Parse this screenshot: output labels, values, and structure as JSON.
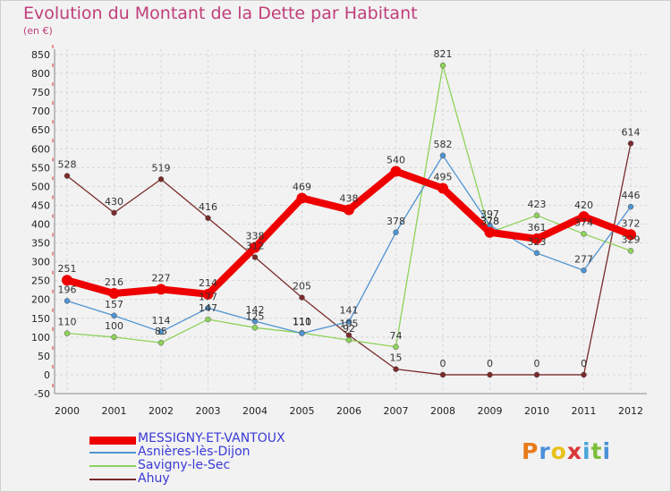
{
  "header": {
    "title": "Evolution du Montant de la Dette par Habitant",
    "subtitle": "(en €)"
  },
  "logo": {
    "letters": [
      "P",
      "r",
      "o",
      "x",
      "i",
      "t",
      "i"
    ],
    "colors": [
      "#e87b1a",
      "#4a90d9",
      "#e8c21a",
      "#d93636",
      "#4aa5d9",
      "#7cbf3a",
      "#4a90d9"
    ]
  },
  "chart_data": {
    "type": "line",
    "title": "Evolution du Montant de la Dette par Habitant",
    "ylabel": "(en €)",
    "x": [
      "2000",
      "2001",
      "2002",
      "2003",
      "2004",
      "2005",
      "2006",
      "2007",
      "2008",
      "2009",
      "2010",
      "2011",
      "2012"
    ],
    "ylim": [
      -50,
      850
    ],
    "yticks": [
      -50,
      0,
      50,
      100,
      150,
      200,
      250,
      300,
      350,
      400,
      450,
      500,
      550,
      600,
      650,
      700,
      750,
      800,
      850
    ],
    "grid": true,
    "legend_position": "bottom-left",
    "series": [
      {
        "name": "MESSIGNY-ET-VANTOUX",
        "color": "#ee0000",
        "values": [
          251,
          216,
          227,
          214,
          338,
          469,
          438,
          540,
          495,
          378,
          361,
          420,
          372
        ],
        "labels": [
          "251",
          "216",
          "227",
          "214",
          "338",
          "469",
          "438",
          "540",
          "495",
          "378",
          "361",
          "420",
          "372"
        ]
      },
      {
        "name": "Asnières-lès-Dijon",
        "color": "#4f93d1",
        "values": [
          196,
          157,
          114,
          177,
          142,
          110,
          141,
          378,
          582,
          397,
          323,
          277,
          446
        ],
        "labels": [
          "196",
          "157",
          "114",
          "177",
          "142",
          "110",
          "141",
          "378",
          "582",
          "397",
          "323",
          "277",
          "446"
        ]
      },
      {
        "name": "Savigny-le-Sec",
        "color": "#8ed25a",
        "values": [
          110,
          100,
          85,
          147,
          125,
          111,
          92,
          74,
          821,
          378,
          423,
          374,
          329
        ],
        "labels": [
          "110",
          "100",
          "85",
          "147",
          "125",
          "111",
          "92",
          "74",
          "821",
          "378",
          "423",
          "374",
          "329"
        ]
      },
      {
        "name": "Ahuy",
        "color": "#7a2a2a",
        "values": [
          528,
          430,
          519,
          416,
          312,
          205,
          105,
          15,
          0,
          0,
          0,
          0,
          614
        ],
        "labels": [
          "528",
          "430",
          "519",
          "416",
          "312",
          "205",
          "105",
          "15",
          "0",
          "0",
          "0",
          "0",
          "614"
        ]
      }
    ]
  }
}
